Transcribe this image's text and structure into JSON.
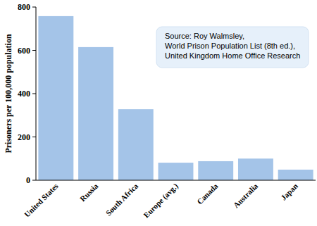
{
  "chart_data": {
    "type": "bar",
    "y_label": "Prisoners per 100,000 population",
    "categories": [
      "United States",
      "Russia",
      "South Africa",
      "Europe (avg.)",
      "Canada",
      "Australia",
      "Japan"
    ],
    "values": [
      758,
      615,
      328,
      81,
      88,
      100,
      49
    ],
    "color": "#a4c4e8",
    "ylim": [
      0,
      800
    ],
    "yticks": [
      0,
      200,
      400,
      600,
      800
    ],
    "grid": false,
    "annotation": [
      "Source: Roy Walmsley,",
      "World Prison Population List (8th ed.),",
      "United Kingdom Home Office Research"
    ]
  }
}
